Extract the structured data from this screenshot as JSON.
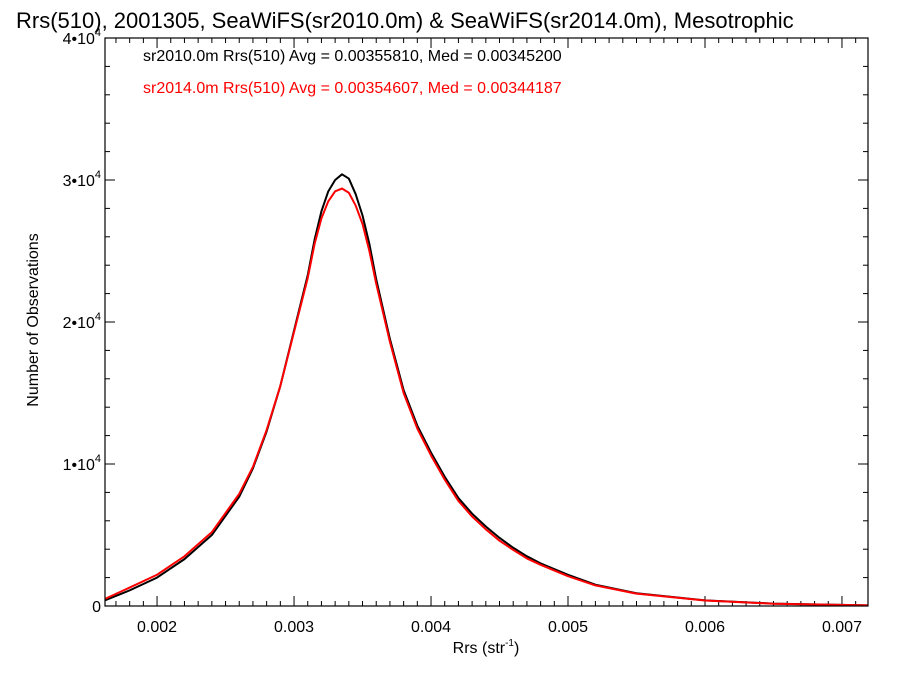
{
  "chart_data": {
    "type": "line",
    "title": "Rrs(510), 2001305, SeaWiFS(sr2010.0m) & SeaWiFS(sr2014.0m), Mesotrophic",
    "xlabel": "Rrs (str",
    "xlabel_sup": "-1",
    "xlabel_end": ")",
    "ylabel": "Number of Observations",
    "xlim": [
      0.00162,
      0.00719
    ],
    "ylim": [
      0,
      40000
    ],
    "x_ticks": [
      {
        "value": 0.002,
        "label": "0.002"
      },
      {
        "value": 0.003,
        "label": "0.003"
      },
      {
        "value": 0.004,
        "label": "0.004"
      },
      {
        "value": 0.005,
        "label": "0.005"
      },
      {
        "value": 0.006,
        "label": "0.006"
      },
      {
        "value": 0.007,
        "label": "0.007"
      }
    ],
    "y_ticks": [
      {
        "value": 0,
        "base": "0",
        "exp": ""
      },
      {
        "value": 10000,
        "base": "1•10",
        "exp": "4"
      },
      {
        "value": 20000,
        "base": "2•10",
        "exp": "4"
      },
      {
        "value": 30000,
        "base": "3•10",
        "exp": "4"
      },
      {
        "value": 40000,
        "base": "4•10",
        "exp": "4"
      }
    ],
    "annotations": [
      {
        "text": "sr2010.0m Rrs(510) Avg = 0.00355810, Med = 0.00345200",
        "color": "#000000"
      },
      {
        "text": "sr2014.0m Rrs(510) Avg = 0.00354607, Med = 0.00344187",
        "color": "#ff0000"
      }
    ],
    "series": [
      {
        "color": "#000000",
        "x": [
          0.00162,
          0.0018,
          0.002,
          0.0022,
          0.0024,
          0.0026,
          0.0027,
          0.0028,
          0.0029,
          0.003,
          0.0031,
          0.00315,
          0.0032,
          0.00325,
          0.0033,
          0.00335,
          0.0034,
          0.00345,
          0.0035,
          0.00355,
          0.0036,
          0.0037,
          0.0038,
          0.0039,
          0.004,
          0.0041,
          0.0042,
          0.0043,
          0.0044,
          0.0045,
          0.0046,
          0.0047,
          0.0048,
          0.005,
          0.0052,
          0.0055,
          0.006,
          0.0065,
          0.00719
        ],
        "y": [
          400,
          1100,
          2000,
          3300,
          5000,
          7700,
          9700,
          12300,
          15500,
          19400,
          23300,
          25800,
          27800,
          29200,
          30000,
          30400,
          30100,
          29000,
          27500,
          25500,
          23000,
          18800,
          15200,
          12700,
          10800,
          9100,
          7600,
          6500,
          5600,
          4800,
          4100,
          3500,
          3000,
          2200,
          1500,
          900,
          400,
          170,
          40
        ]
      },
      {
        "color": "#ff0000",
        "x": [
          0.00162,
          0.0018,
          0.002,
          0.0022,
          0.0024,
          0.0026,
          0.0027,
          0.0028,
          0.0029,
          0.003,
          0.0031,
          0.00315,
          0.0032,
          0.00325,
          0.0033,
          0.00335,
          0.0034,
          0.00345,
          0.0035,
          0.00355,
          0.0036,
          0.0037,
          0.0038,
          0.0039,
          0.004,
          0.0041,
          0.0042,
          0.0043,
          0.0044,
          0.0045,
          0.0046,
          0.0047,
          0.0048,
          0.005,
          0.0052,
          0.0055,
          0.006,
          0.0065,
          0.00719
        ],
        "y": [
          500,
          1300,
          2200,
          3500,
          5200,
          7900,
          9800,
          12400,
          15500,
          19300,
          23100,
          25500,
          27300,
          28500,
          29200,
          29400,
          29100,
          28200,
          26900,
          25000,
          22700,
          18600,
          15000,
          12500,
          10600,
          8900,
          7400,
          6300,
          5400,
          4600,
          3950,
          3350,
          2900,
          2100,
          1450,
          870,
          390,
          160,
          40
        ]
      }
    ]
  }
}
